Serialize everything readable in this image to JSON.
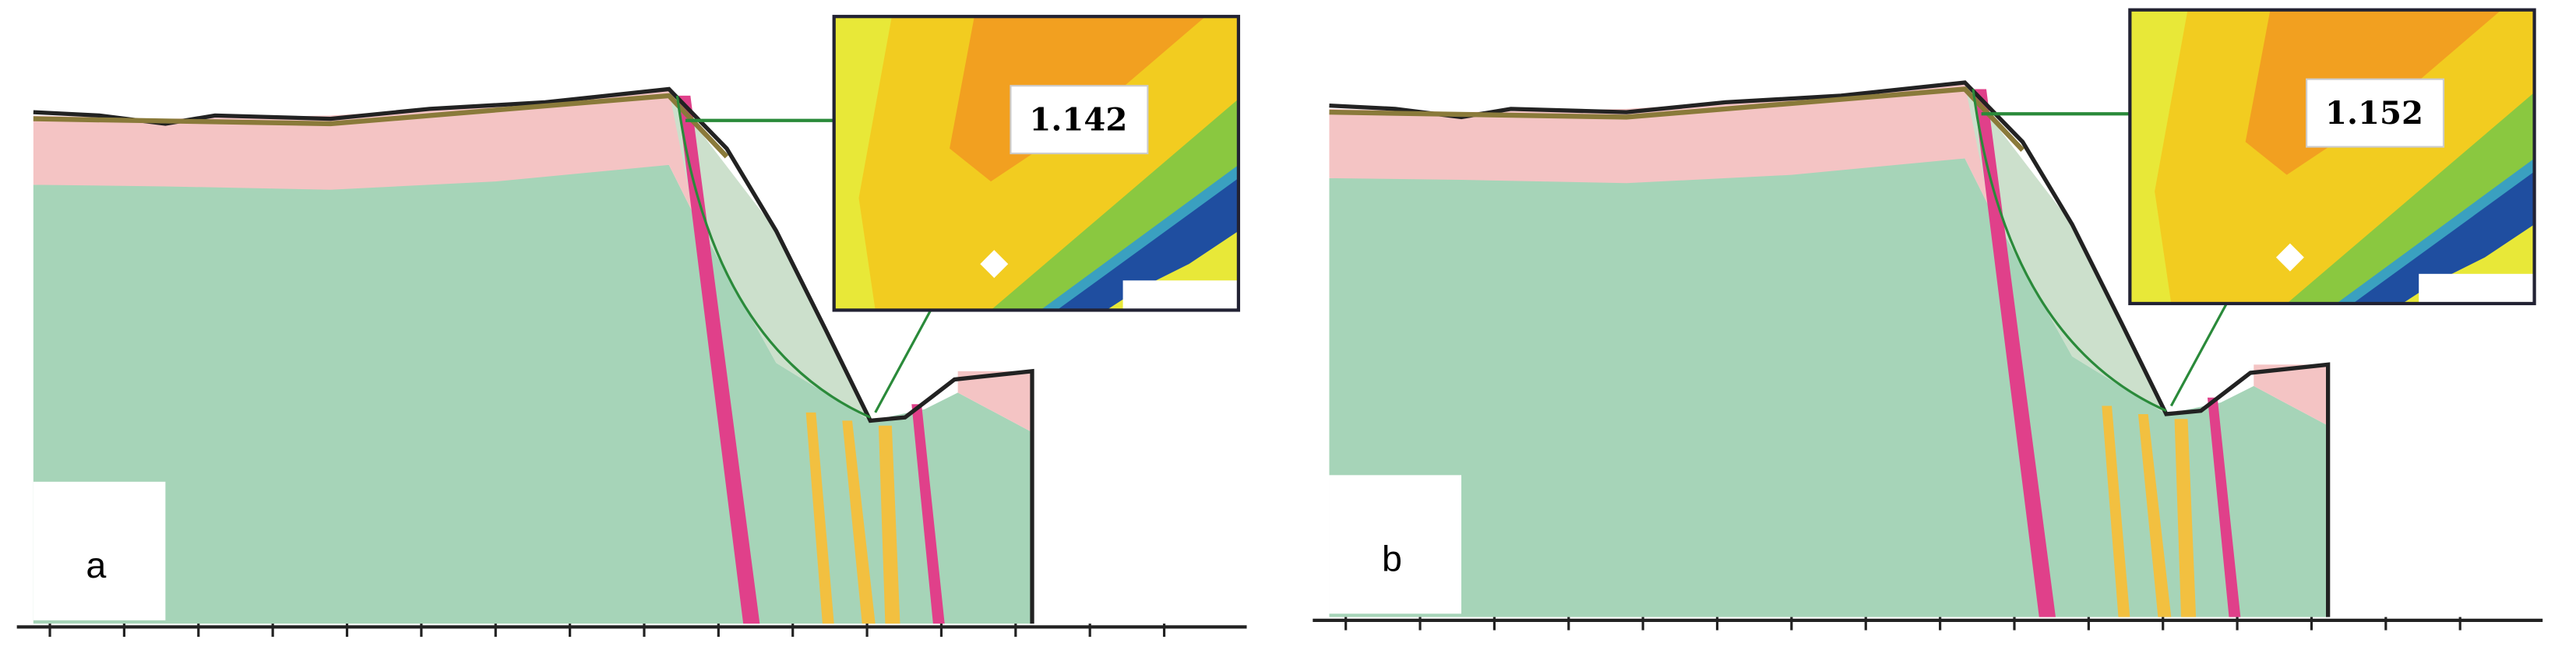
{
  "panels": [
    {
      "label": "a",
      "factor_of_safety": "1.142"
    },
    {
      "label": "b",
      "factor_of_safety": "1.152"
    }
  ]
}
